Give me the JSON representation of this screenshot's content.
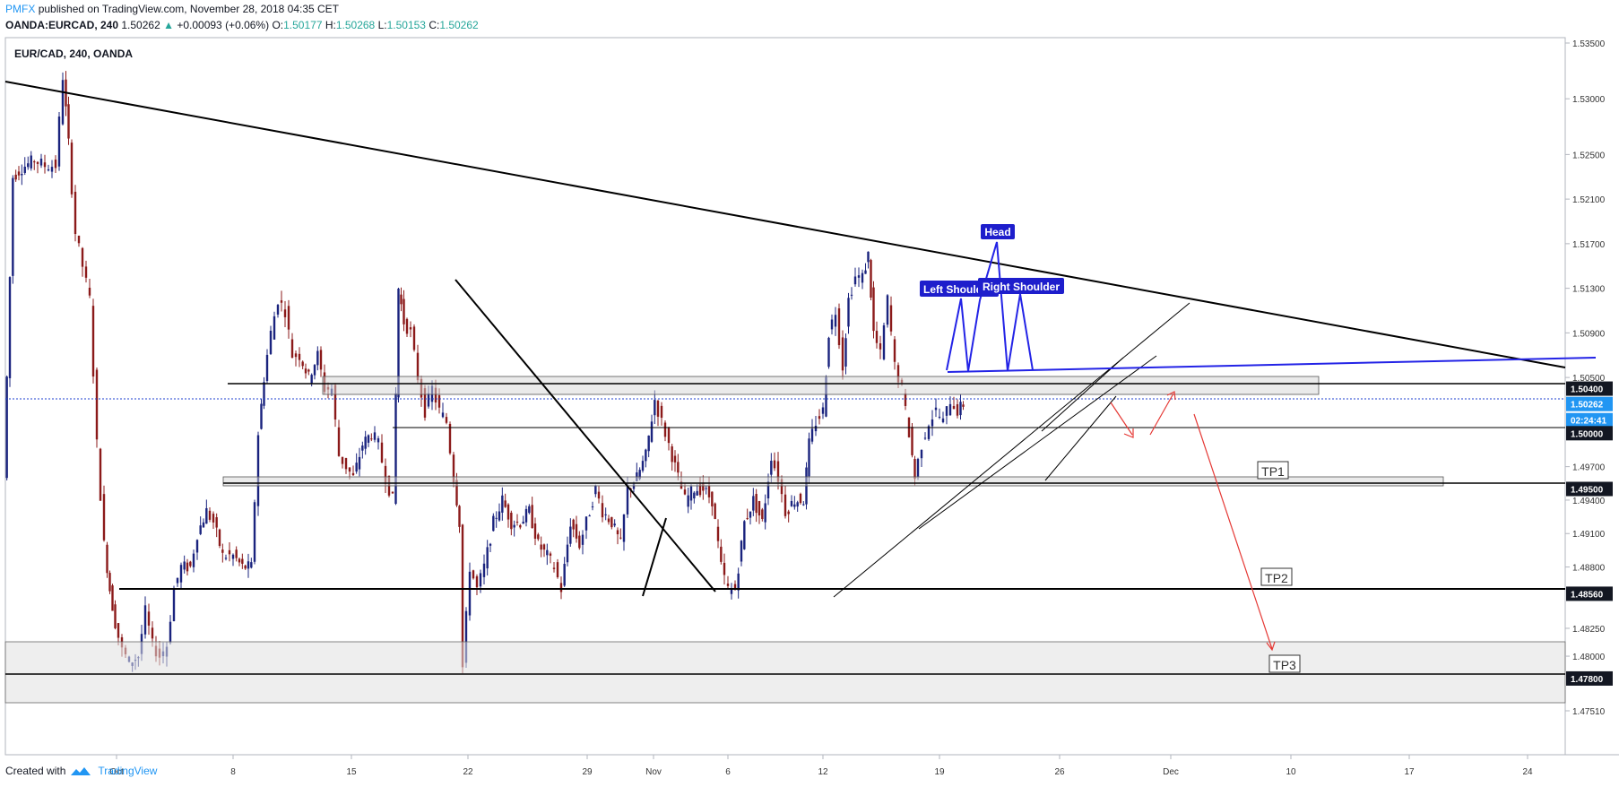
{
  "header": {
    "publisher": "PMFX",
    "published_text": "published on TradingView.com, November 28, 2018 04:35 CET",
    "symbol_line": "OANDA:EURCAD, 240",
    "last": "1.50262",
    "change_arrow": "▲",
    "change": "+0.00093 (+0.06%)",
    "open_label": "O:",
    "open": "1.50177",
    "high_label": "H:",
    "high": "1.50268",
    "low_label": "L:",
    "low": "1.50153",
    "close_label": "C:",
    "close": "1.50262"
  },
  "footer": {
    "created_with": "Created with",
    "brand": "TradingView"
  },
  "colors": {
    "bull": "#1a237e",
    "bear": "#8b1a1a",
    "blue_line": "#2323e6",
    "arrow": "#e53935",
    "axis_label_bg": "#131722",
    "current_bg": "#2196f3"
  },
  "chart_data": {
    "type": "candlestick",
    "title": "EUR/CAD, 240, OANDA",
    "x_ticks": [
      "Oct",
      "8",
      "15",
      "22",
      "29",
      "Nov",
      "6",
      "12",
      "19",
      "26",
      "Dec",
      "10",
      "17",
      "24"
    ],
    "y_ticks": [
      "1.53500",
      "1.53000",
      "1.52500",
      "1.52100",
      "1.51700",
      "1.51300",
      "1.50900",
      "1.50500",
      "1.49700",
      "1.49400",
      "1.49100",
      "1.48800",
      "1.48250",
      "1.48000",
      "1.47510"
    ],
    "y_range": [
      1.4725,
      1.5355
    ],
    "price_labels": [
      {
        "value": "1.50400",
        "kind": "level"
      },
      {
        "value": "1.50262",
        "kind": "current"
      },
      {
        "value": "02:24:41",
        "kind": "countdown"
      },
      {
        "value": "1.50000",
        "kind": "level"
      },
      {
        "value": "1.49500",
        "kind": "level"
      },
      {
        "value": "1.48560",
        "kind": "level"
      },
      {
        "value": "1.47800",
        "kind": "level"
      }
    ],
    "annotations": [
      {
        "text": "Head",
        "style": "blue-box"
      },
      {
        "text": "Left Shoulder",
        "style": "blue-box"
      },
      {
        "text": "Right Shoulder",
        "style": "blue-box"
      },
      {
        "text": "TP1",
        "style": "outline-box"
      },
      {
        "text": "TP2",
        "style": "outline-box"
      },
      {
        "text": "TP3",
        "style": "outline-box"
      }
    ],
    "path_points": [
      [
        0,
        1.496
      ],
      [
        10,
        1.523
      ],
      [
        20,
        1.5238
      ],
      [
        34,
        1.5245
      ],
      [
        46,
        1.524
      ],
      [
        58,
        1.524
      ],
      [
        66,
        1.532
      ],
      [
        72,
        1.526
      ],
      [
        80,
        1.518
      ],
      [
        88,
        1.515
      ],
      [
        96,
        1.512
      ],
      [
        104,
        1.499
      ],
      [
        112,
        1.49
      ],
      [
        118,
        1.486
      ],
      [
        124,
        1.483
      ],
      [
        132,
        1.4805
      ],
      [
        140,
        1.4795
      ],
      [
        150,
        1.48
      ],
      [
        158,
        1.484
      ],
      [
        166,
        1.481
      ],
      [
        174,
        1.48
      ],
      [
        182,
        1.481
      ],
      [
        190,
        1.486
      ],
      [
        198,
        1.488
      ],
      [
        208,
        1.488
      ],
      [
        216,
        1.491
      ],
      [
        226,
        1.493
      ],
      [
        234,
        1.492
      ],
      [
        244,
        1.489
      ],
      [
        256,
        1.489
      ],
      [
        266,
        1.488
      ],
      [
        276,
        1.488
      ],
      [
        284,
        1.5
      ],
      [
        290,
        1.505
      ],
      [
        298,
        1.509
      ],
      [
        306,
        1.512
      ],
      [
        314,
        1.511
      ],
      [
        322,
        1.507
      ],
      [
        330,
        1.507
      ],
      [
        340,
        1.505
      ],
      [
        350,
        1.507
      ],
      [
        358,
        1.504
      ],
      [
        366,
        1.504
      ],
      [
        374,
        1.498
      ],
      [
        382,
        1.497
      ],
      [
        390,
        1.496
      ],
      [
        400,
        1.499
      ],
      [
        410,
        1.5
      ],
      [
        418,
        1.499
      ],
      [
        426,
        1.496
      ],
      [
        434,
        1.494
      ],
      [
        440,
        1.513
      ],
      [
        446,
        1.51
      ],
      [
        454,
        1.509
      ],
      [
        462,
        1.505
      ],
      [
        470,
        1.502
      ],
      [
        478,
        1.504
      ],
      [
        486,
        1.502
      ],
      [
        494,
        1.501
      ],
      [
        502,
        1.496
      ],
      [
        508,
        1.492
      ],
      [
        512,
        1.479
      ],
      [
        520,
        1.488
      ],
      [
        528,
        1.486
      ],
      [
        536,
        1.488
      ],
      [
        546,
        1.492
      ],
      [
        556,
        1.494
      ],
      [
        566,
        1.492
      ],
      [
        576,
        1.492
      ],
      [
        586,
        1.493
      ],
      [
        596,
        1.49
      ],
      [
        606,
        1.489
      ],
      [
        614,
        1.488
      ],
      [
        622,
        1.486
      ],
      [
        632,
        1.492
      ],
      [
        642,
        1.49
      ],
      [
        650,
        1.492
      ],
      [
        660,
        1.495
      ],
      [
        668,
        1.493
      ],
      [
        678,
        1.492
      ],
      [
        688,
        1.49
      ],
      [
        696,
        1.495
      ],
      [
        706,
        1.496
      ],
      [
        716,
        1.498
      ],
      [
        726,
        1.503
      ],
      [
        734,
        1.501
      ],
      [
        742,
        1.499
      ],
      [
        752,
        1.496
      ],
      [
        760,
        1.494
      ],
      [
        770,
        1.495
      ],
      [
        780,
        1.495
      ],
      [
        790,
        1.494
      ],
      [
        800,
        1.488
      ],
      [
        808,
        1.486
      ],
      [
        816,
        1.486
      ],
      [
        826,
        1.492
      ],
      [
        836,
        1.494
      ],
      [
        846,
        1.492
      ],
      [
        856,
        1.498
      ],
      [
        864,
        1.496
      ],
      [
        872,
        1.493
      ],
      [
        882,
        1.494
      ],
      [
        892,
        1.494
      ],
      [
        898,
        1.499
      ],
      [
        906,
        1.501
      ],
      [
        914,
        1.502
      ],
      [
        920,
        1.509
      ],
      [
        928,
        1.511
      ],
      [
        936,
        1.506
      ],
      [
        942,
        1.512
      ],
      [
        950,
        1.514
      ],
      [
        958,
        1.514
      ],
      [
        964,
        1.516
      ],
      [
        970,
        1.509
      ],
      [
        978,
        1.507
      ],
      [
        986,
        1.512
      ],
      [
        994,
        1.506
      ],
      [
        1002,
        1.504
      ],
      [
        1010,
        1.5
      ],
      [
        1016,
        1.496
      ],
      [
        1024,
        1.499
      ],
      [
        1032,
        1.501
      ],
      [
        1040,
        1.502
      ],
      [
        1048,
        1.501
      ],
      [
        1056,
        1.503
      ],
      [
        1064,
        1.502
      ],
      [
        1070,
        1.5026
      ]
    ]
  }
}
